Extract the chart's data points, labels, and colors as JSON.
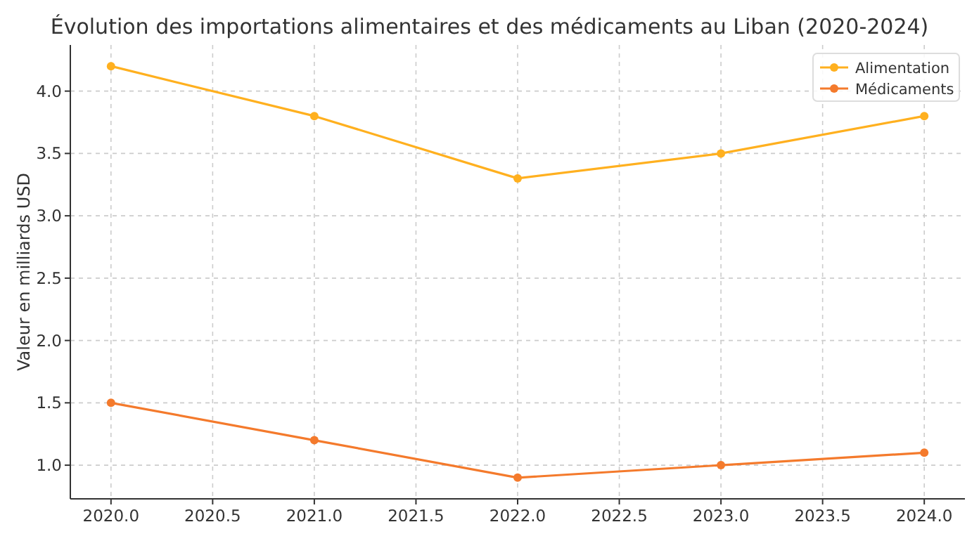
{
  "chart_data": {
    "type": "line",
    "title": "Évolution des importations alimentaires et des médicaments au Liban (2020-2024)",
    "ylabel": "Valeur en milliards USD",
    "x": [
      2020,
      2021,
      2022,
      2023,
      2024
    ],
    "series": [
      {
        "name": "Alimentation",
        "color": "#ffb01f",
        "values": [
          4.2,
          3.8,
          3.3,
          3.5,
          3.8
        ]
      },
      {
        "name": "Médicaments",
        "color": "#f47a2c",
        "values": [
          1.5,
          1.2,
          0.9,
          1.0,
          1.1
        ]
      }
    ],
    "xlim": [
      2019.8,
      2024.2
    ],
    "xticks": [
      {
        "value": 2020,
        "label": "2020.0"
      },
      {
        "value": 2020.5,
        "label": "2020.5"
      },
      {
        "value": 2021,
        "label": "2021.0"
      },
      {
        "value": 2021.5,
        "label": "2021.5"
      },
      {
        "value": 2022,
        "label": "2022.0"
      },
      {
        "value": 2022.5,
        "label": "2022.5"
      },
      {
        "value": 2023,
        "label": "2023.0"
      },
      {
        "value": 2023.5,
        "label": "2023.5"
      },
      {
        "value": 2024,
        "label": "2024.0"
      }
    ],
    "ylim": [
      0.73,
      4.37
    ],
    "yticks": [
      {
        "value": 1,
        "label": "1.0"
      },
      {
        "value": 1.5,
        "label": "1.5"
      },
      {
        "value": 2,
        "label": "2.0"
      },
      {
        "value": 2.5,
        "label": "2.5"
      },
      {
        "value": 3,
        "label": "3.0"
      },
      {
        "value": 3.5,
        "label": "3.5"
      },
      {
        "value": 4,
        "label": "4.0"
      }
    ],
    "grid": true,
    "legend": "top right",
    "marker": "circle",
    "line_style": "solid"
  }
}
